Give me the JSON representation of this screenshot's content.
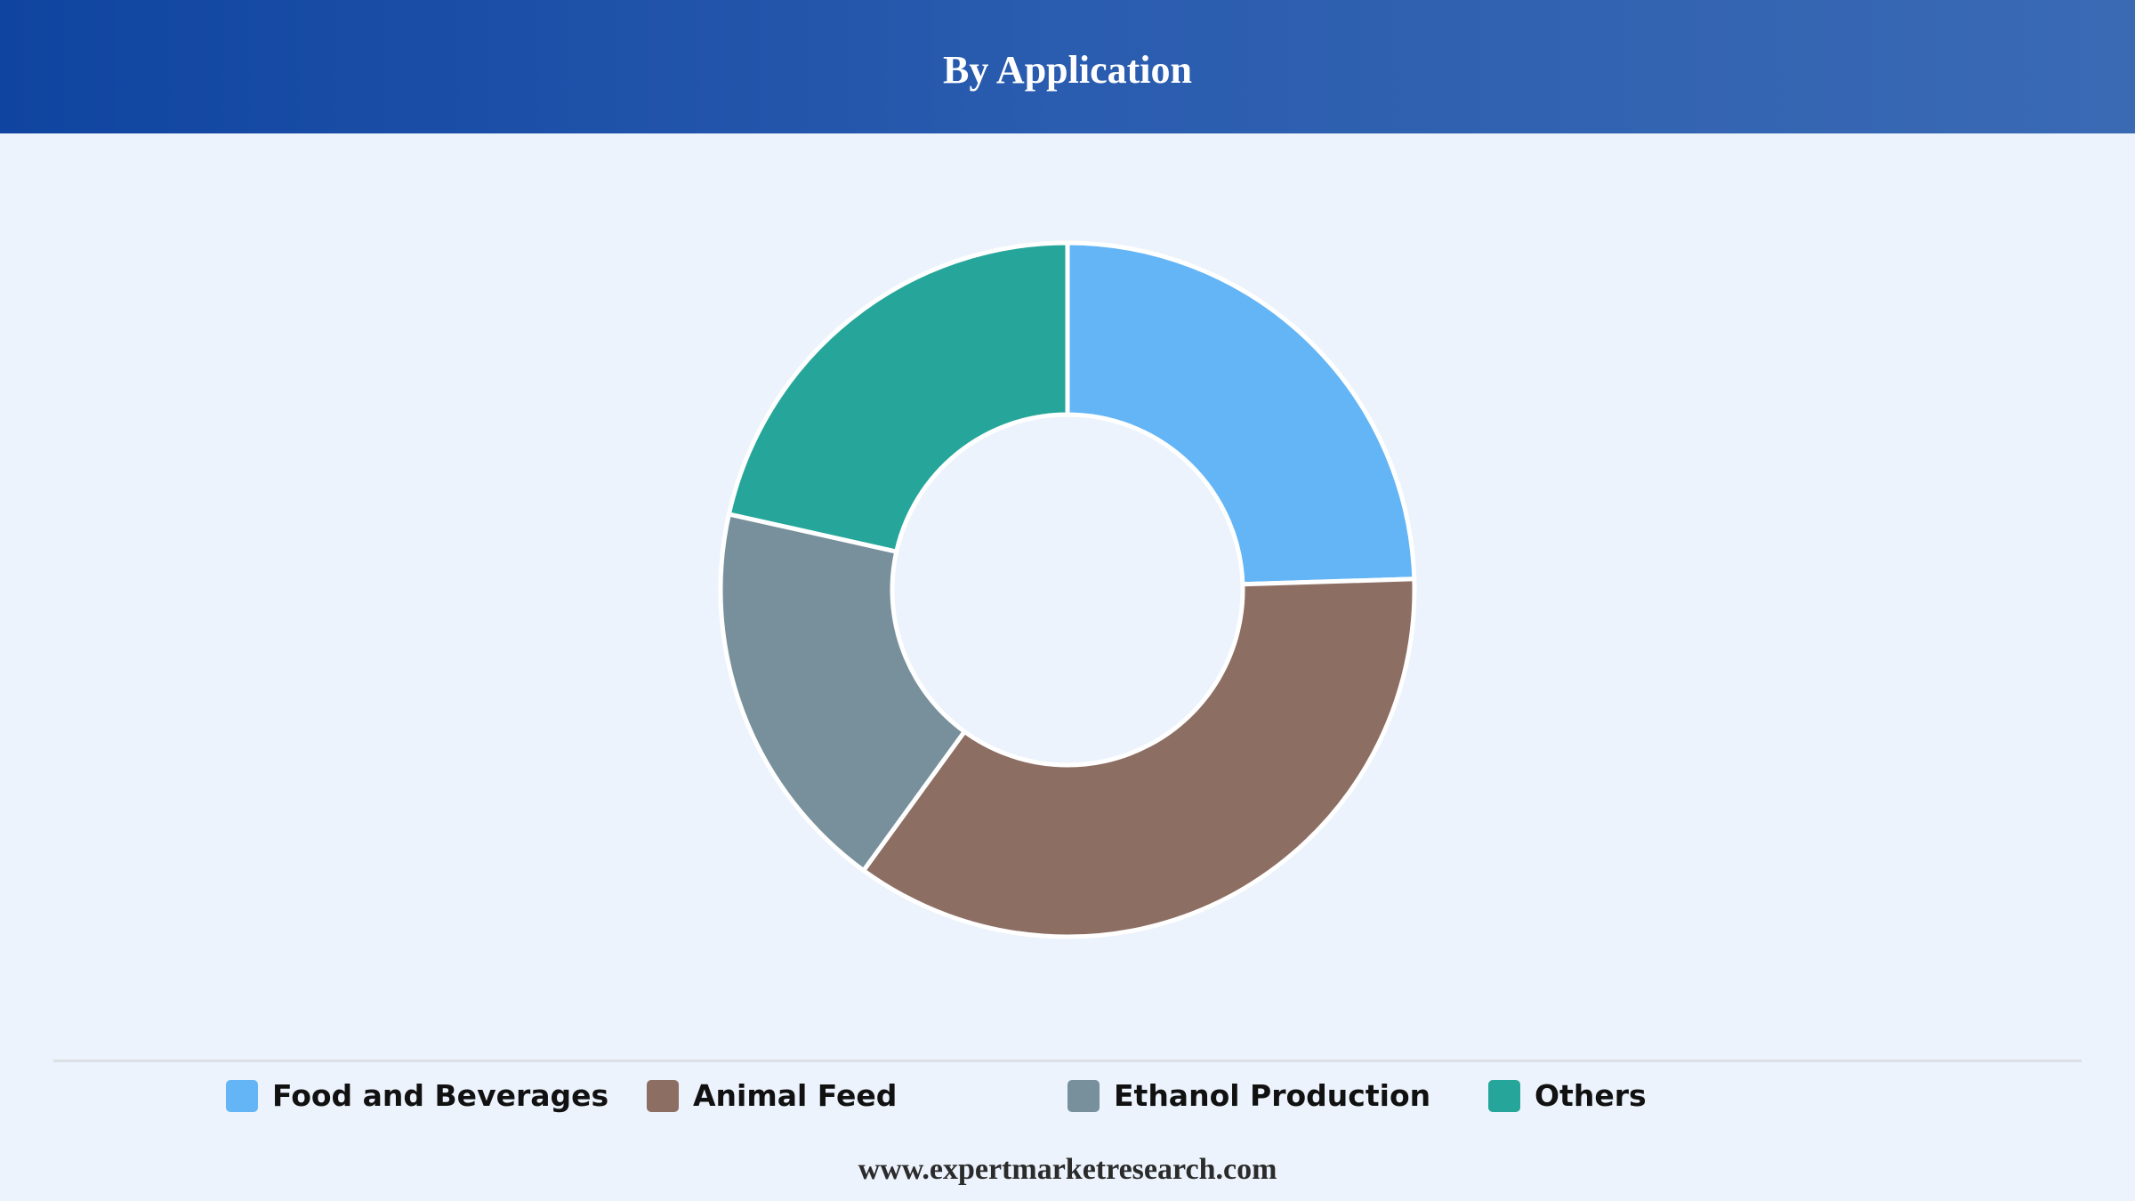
{
  "header": {
    "title": "By Application"
  },
  "footer": {
    "text": "www.expertmarketresearch.com"
  },
  "chart_data": {
    "type": "pie",
    "variant": "donut",
    "categories": [
      "Food and Beverages",
      "Animal Feed",
      "Ethanol Production",
      "Others"
    ],
    "values": [
      24.5,
      35.5,
      18.5,
      21.5
    ],
    "colors": [
      "#64b5f6",
      "#8d6e63",
      "#78909c",
      "#26a69a"
    ],
    "legend_position": "bottom"
  }
}
